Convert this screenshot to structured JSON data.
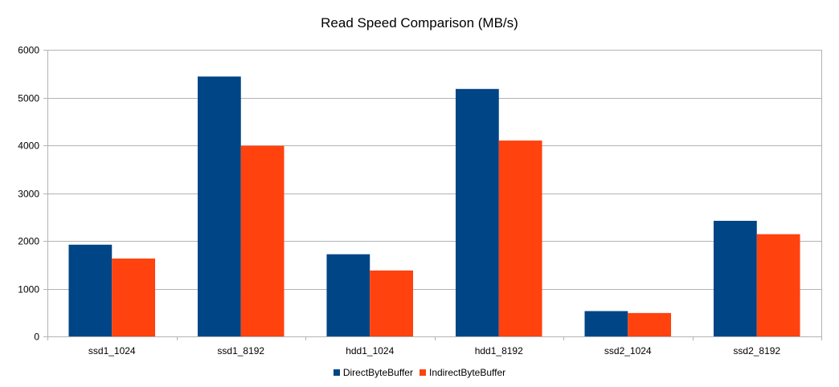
{
  "chart_data": {
    "type": "bar",
    "title": "Read Speed Comparison (MB/s)",
    "xlabel": "",
    "ylabel": "",
    "categories": [
      "ssd1_1024",
      "ssd1_8192",
      "hdd1_1024",
      "hdd1_8192",
      "ssd2_1024",
      "ssd2_8192"
    ],
    "series": [
      {
        "name": "DirectByteBuffer",
        "color": "#004586",
        "values": [
          1920,
          5440,
          1720,
          5180,
          530,
          2420
        ]
      },
      {
        "name": "IndirectByteBuffer",
        "color": "#ff420e",
        "values": [
          1630,
          3990,
          1380,
          4100,
          490,
          2140
        ]
      }
    ],
    "ylim": [
      0,
      6000
    ],
    "yticks": [
      0,
      1000,
      2000,
      3000,
      4000,
      5000,
      6000
    ],
    "grid": true,
    "legend_position": "bottom"
  }
}
